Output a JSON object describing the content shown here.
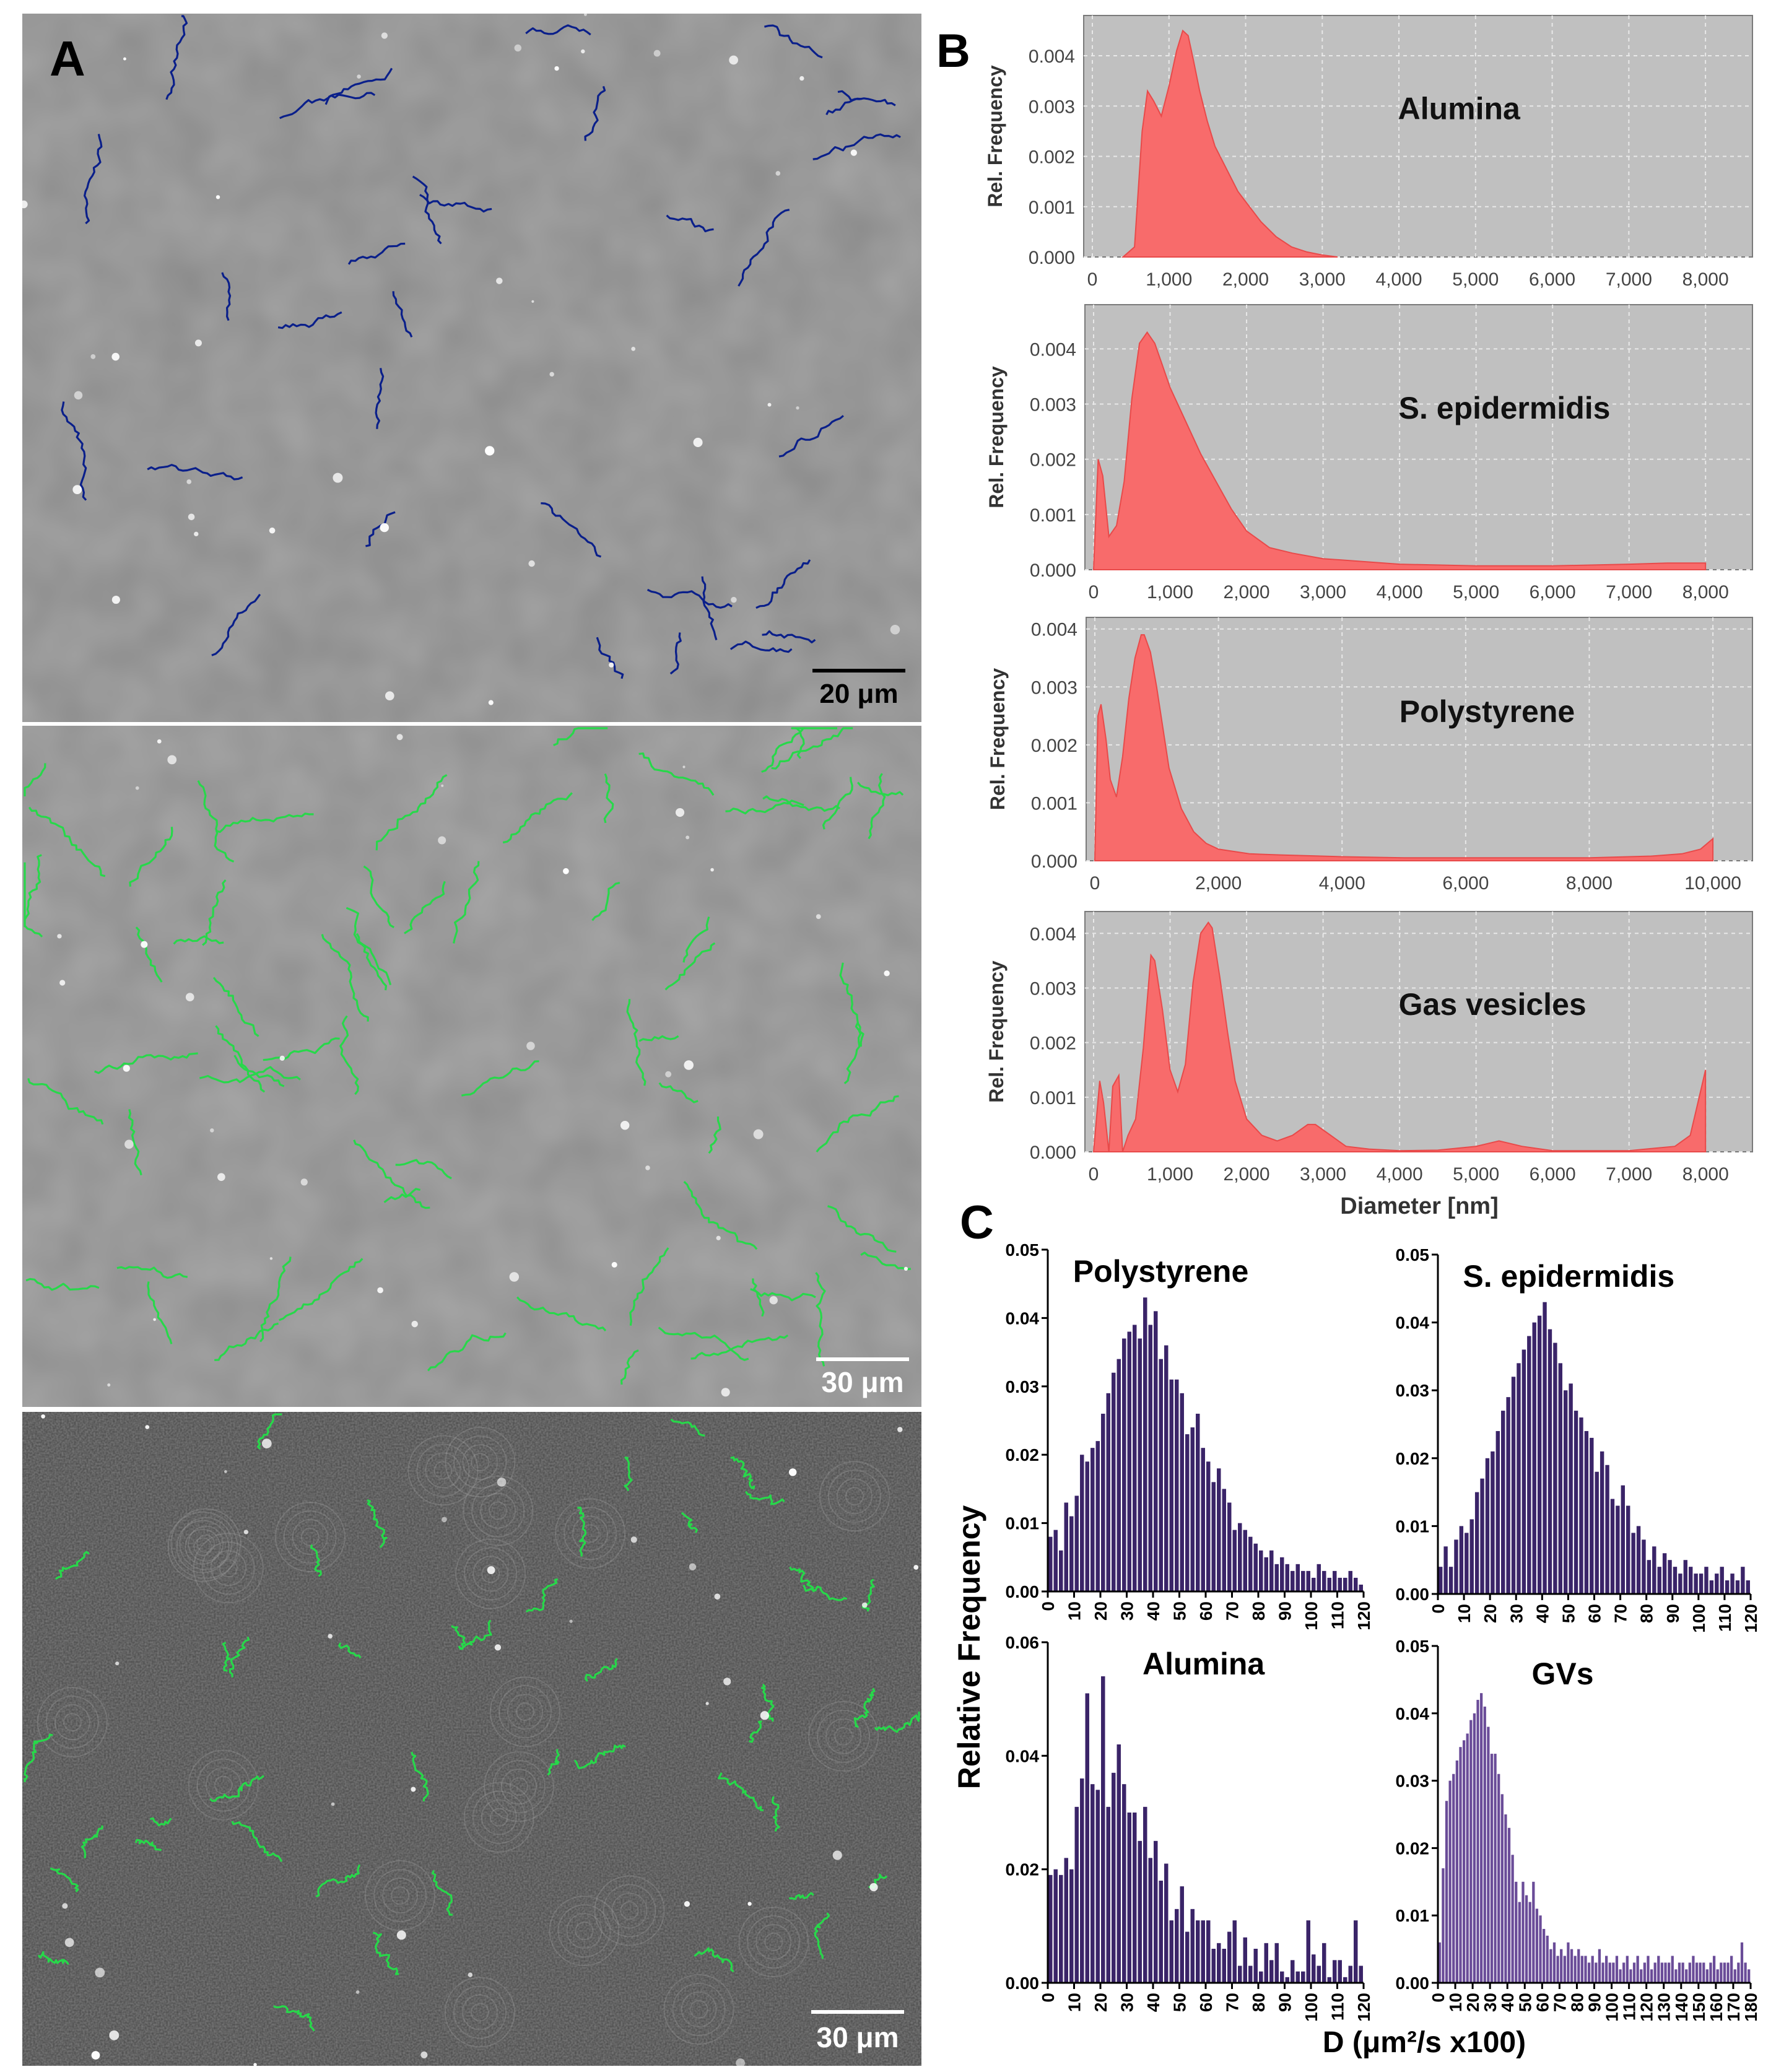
{
  "figure": {
    "panel_labels": {
      "a": "A",
      "b": "B",
      "c": "C"
    },
    "micrographs": [
      {
        "scale_label": "20 μm",
        "bg": "#8b8b8b",
        "track_color": "#0a1f8a"
      },
      {
        "scale_label": "30 μm",
        "bg": "#8e8e8e",
        "track_color": "#27d84a"
      },
      {
        "scale_label": "30 μm",
        "bg": "#4c4c4c",
        "track_color": "#27d84a"
      }
    ],
    "b_ylabel": "Rel. Frequency",
    "b_xlabel": "Diameter [nm]",
    "c_ylabel": "Relative Frequency",
    "c_xlabel": "D (μm²/s x100)"
  },
  "chart_data": [
    {
      "id": "b1",
      "type": "area",
      "title": "Alumina",
      "xlim": [
        0,
        8500
      ],
      "ylim": [
        0,
        0.0048
      ],
      "xticks": [
        0,
        1000,
        2000,
        3000,
        4000,
        5000,
        6000,
        7000,
        8000
      ],
      "xtick_labels": [
        "0",
        "1,000",
        "2,000",
        "3,000",
        "4,000",
        "5,000",
        "6,000",
        "7,000",
        "8,000"
      ],
      "yticks": [
        0,
        0.001,
        0.002,
        0.003,
        0.004
      ],
      "ytick_labels": [
        "0.000",
        "0.001",
        "0.002",
        "0.003",
        "0.004"
      ],
      "x": [
        400,
        550,
        650,
        720,
        800,
        900,
        1000,
        1100,
        1180,
        1250,
        1320,
        1400,
        1500,
        1600,
        1700,
        1800,
        1900,
        2000,
        2200,
        2400,
        2600,
        2800,
        3000,
        3200
      ],
      "y": [
        0,
        0.0002,
        0.0025,
        0.0033,
        0.0031,
        0.0028,
        0.0034,
        0.0041,
        0.0045,
        0.0044,
        0.0039,
        0.0033,
        0.0027,
        0.0022,
        0.0019,
        0.0016,
        0.0013,
        0.0011,
        0.0007,
        0.0004,
        0.0002,
        0.0001,
        4e-05,
        0
      ],
      "color": "#f86b6b"
    },
    {
      "id": "b2",
      "type": "area",
      "title": "S. epidermidis",
      "xlim": [
        0,
        8500
      ],
      "ylim": [
        0,
        0.0048
      ],
      "xticks": [
        0,
        1000,
        2000,
        3000,
        4000,
        5000,
        6000,
        7000,
        8000
      ],
      "xtick_labels": [
        "0",
        "1,000",
        "2,000",
        "3,000",
        "4,000",
        "5,000",
        "6,000",
        "7,000",
        "8,000"
      ],
      "yticks": [
        0,
        0.001,
        0.002,
        0.003,
        0.004
      ],
      "ytick_labels": [
        "0.000",
        "0.001",
        "0.002",
        "0.003",
        "0.004"
      ],
      "x": [
        0,
        60,
        120,
        200,
        300,
        400,
        500,
        600,
        700,
        800,
        900,
        1000,
        1200,
        1400,
        1600,
        1800,
        2000,
        2300,
        2600,
        3000,
        3500,
        4000,
        5000,
        6000,
        7000,
        7500,
        8000
      ],
      "y": [
        0,
        0.002,
        0.0017,
        0.0006,
        0.0008,
        0.0016,
        0.0031,
        0.0041,
        0.0043,
        0.0041,
        0.0037,
        0.0033,
        0.0027,
        0.0021,
        0.0016,
        0.0011,
        0.0007,
        0.0004,
        0.0003,
        0.0002,
        0.00015,
        0.0001,
        7e-05,
        7e-05,
        0.0001,
        0.00012,
        0.00012
      ],
      "color": "#f86b6b"
    },
    {
      "id": "b3",
      "type": "area",
      "title": "Polystyrene",
      "xlim": [
        0,
        10500
      ],
      "ylim": [
        0,
        0.0042
      ],
      "xticks": [
        0,
        2000,
        4000,
        6000,
        8000,
        10000
      ],
      "xtick_labels": [
        "0",
        "2,000",
        "4,000",
        "6,000",
        "8,000",
        "10,000"
      ],
      "yticks": [
        0,
        0.001,
        0.002,
        0.003,
        0.004
      ],
      "ytick_labels": [
        "0.000",
        "0.001",
        "0.002",
        "0.003",
        "0.004"
      ],
      "x": [
        0,
        50,
        100,
        180,
        250,
        350,
        450,
        550,
        650,
        750,
        800,
        900,
        1000,
        1100,
        1200,
        1400,
        1600,
        1800,
        2000,
        2500,
        3000,
        4000,
        5000,
        6000,
        7000,
        8000,
        9000,
        9500,
        9800,
        10000
      ],
      "y": [
        0,
        0.0025,
        0.0027,
        0.0021,
        0.0014,
        0.0011,
        0.0018,
        0.0028,
        0.0035,
        0.0039,
        0.0039,
        0.0036,
        0.003,
        0.0023,
        0.0016,
        0.0009,
        0.0005,
        0.0003,
        0.0002,
        0.00012,
        0.0001,
        7e-05,
        5e-05,
        5e-05,
        5e-05,
        5e-05,
        8e-05,
        0.00012,
        0.0002,
        0.00038
      ],
      "color": "#f86b6b"
    },
    {
      "id": "b4",
      "type": "area",
      "title": "Gas vesicles",
      "xlim": [
        0,
        8500
      ],
      "ylim": [
        0,
        0.0044
      ],
      "xticks": [
        0,
        1000,
        2000,
        3000,
        4000,
        5000,
        6000,
        7000,
        8000
      ],
      "xtick_labels": [
        "0",
        "1,000",
        "2,000",
        "3,000",
        "4,000",
        "5,000",
        "6,000",
        "7,000",
        "8,000"
      ],
      "yticks": [
        0,
        0.001,
        0.002,
        0.003,
        0.004
      ],
      "ytick_labels": [
        "0.000",
        "0.001",
        "0.002",
        "0.003",
        "0.004"
      ],
      "x": [
        0,
        80,
        130,
        200,
        250,
        330,
        380,
        450,
        550,
        650,
        750,
        800,
        900,
        1000,
        1100,
        1200,
        1300,
        1400,
        1500,
        1550,
        1650,
        1750,
        1850,
        2000,
        2200,
        2400,
        2600,
        2800,
        2900,
        3100,
        3300,
        3600,
        4000,
        4500,
        5000,
        5300,
        5600,
        6000,
        7000,
        7600,
        7800,
        7950,
        8000
      ],
      "y": [
        0,
        0.0013,
        0.0009,
        0.0,
        0.0012,
        0.0014,
        0.0,
        0.0003,
        0.0006,
        0.0019,
        0.0036,
        0.0035,
        0.0026,
        0.0015,
        0.0011,
        0.0016,
        0.0031,
        0.004,
        0.0042,
        0.0041,
        0.0032,
        0.0022,
        0.0013,
        0.0006,
        0.0003,
        0.0002,
        0.0003,
        0.0005,
        0.0005,
        0.0003,
        0.0001,
        5e-05,
        2e-05,
        3e-05,
        0.0001,
        0.0002,
        0.0001,
        2e-05,
        2e-05,
        0.0001,
        0.0003,
        0.0012,
        0.0015
      ],
      "color": "#f86b6b"
    },
    {
      "id": "c1",
      "type": "bar",
      "title": "Polystyrene",
      "ylim": [
        0,
        0.05
      ],
      "yticks": [
        0,
        0.01,
        0.02,
        0.03,
        0.04,
        0.05
      ],
      "ytick_labels": [
        "0.00",
        "0.01",
        "0.02",
        "0.03",
        "0.04",
        "0.05"
      ],
      "xticks": [
        0,
        10,
        20,
        30,
        40,
        50,
        60,
        70,
        80,
        90,
        100,
        110,
        120
      ],
      "xlim": [
        0,
        120
      ],
      "bin_width": 2,
      "color": "#3a2468",
      "values": [
        0.008,
        0.009,
        0.006,
        0.013,
        0.011,
        0.014,
        0.02,
        0.019,
        0.021,
        0.022,
        0.026,
        0.029,
        0.032,
        0.034,
        0.037,
        0.038,
        0.039,
        0.037,
        0.043,
        0.039,
        0.041,
        0.034,
        0.036,
        0.031,
        0.031,
        0.029,
        0.023,
        0.024,
        0.026,
        0.021,
        0.019,
        0.016,
        0.018,
        0.015,
        0.013,
        0.009,
        0.01,
        0.009,
        0.008,
        0.007,
        0.006,
        0.005,
        0.006,
        0.004,
        0.005,
        0.004,
        0.003,
        0.004,
        0.003,
        0.003,
        0.002,
        0.004,
        0.003,
        0.002,
        0.003,
        0.002,
        0.002,
        0.003,
        0.002,
        0.001
      ]
    },
    {
      "id": "c2",
      "type": "bar",
      "title": "S. epidermidis",
      "ylim": [
        0,
        0.05
      ],
      "yticks": [
        0,
        0.01,
        0.02,
        0.03,
        0.04,
        0.05
      ],
      "ytick_labels": [
        "0.00",
        "0.01",
        "0.02",
        "0.03",
        "0.04",
        "0.05"
      ],
      "xticks": [
        0,
        10,
        20,
        30,
        40,
        50,
        60,
        70,
        80,
        90,
        100,
        110,
        120
      ],
      "xlim": [
        0,
        120
      ],
      "bin_width": 2,
      "color": "#3a2468",
      "values": [
        0.004,
        0.007,
        0.004,
        0.008,
        0.01,
        0.009,
        0.011,
        0.015,
        0.017,
        0.02,
        0.021,
        0.024,
        0.027,
        0.029,
        0.032,
        0.034,
        0.036,
        0.038,
        0.04,
        0.041,
        0.043,
        0.039,
        0.037,
        0.034,
        0.03,
        0.031,
        0.027,
        0.026,
        0.024,
        0.023,
        0.018,
        0.021,
        0.019,
        0.014,
        0.013,
        0.016,
        0.013,
        0.009,
        0.01,
        0.008,
        0.005,
        0.007,
        0.004,
        0.006,
        0.005,
        0.004,
        0.003,
        0.005,
        0.004,
        0.003,
        0.003,
        0.004,
        0.002,
        0.003,
        0.004,
        0.002,
        0.003,
        0.002,
        0.004,
        0.002
      ]
    },
    {
      "id": "c3",
      "type": "bar",
      "title": "Alumina",
      "ylim": [
        0,
        0.06
      ],
      "yticks": [
        0,
        0.02,
        0.04,
        0.06
      ],
      "ytick_labels": [
        "0.00",
        "0.02",
        "0.04",
        "0.06"
      ],
      "xticks": [
        0,
        10,
        20,
        30,
        40,
        50,
        60,
        70,
        80,
        90,
        100,
        110,
        120
      ],
      "xlim": [
        0,
        120
      ],
      "bin_width": 2,
      "color": "#3a2468",
      "values": [
        0.019,
        0.02,
        0.019,
        0.022,
        0.02,
        0.031,
        0.036,
        0.051,
        0.035,
        0.034,
        0.054,
        0.031,
        0.037,
        0.042,
        0.035,
        0.03,
        0.03,
        0.025,
        0.031,
        0.022,
        0.025,
        0.018,
        0.021,
        0.011,
        0.013,
        0.017,
        0.009,
        0.013,
        0.011,
        0.011,
        0.011,
        0.006,
        0.007,
        0.006,
        0.009,
        0.011,
        0.003,
        0.008,
        0.003,
        0.006,
        0.002,
        0.007,
        0.004,
        0.007,
        0.002,
        0.001,
        0.004,
        0.002,
        0.002,
        0.011,
        0.005,
        0.003,
        0.007,
        0.001,
        0.004,
        0.004,
        0.001,
        0.003,
        0.011,
        0.003
      ]
    },
    {
      "id": "c4",
      "type": "bar",
      "title": "GVs",
      "ylim": [
        0,
        0.05
      ],
      "yticks": [
        0,
        0.01,
        0.02,
        0.03,
        0.04,
        0.05
      ],
      "ytick_labels": [
        "0.00",
        "0.01",
        "0.02",
        "0.03",
        "0.04",
        "0.05"
      ],
      "xticks": [
        0,
        10,
        20,
        30,
        40,
        50,
        60,
        70,
        80,
        90,
        100,
        110,
        120,
        130,
        140,
        150,
        160,
        170,
        180
      ],
      "xlim": [
        0,
        180
      ],
      "bin_width": 2,
      "color": "#6a4c98",
      "values": [
        0.006,
        0.017,
        0.027,
        0.03,
        0.031,
        0.033,
        0.035,
        0.036,
        0.037,
        0.039,
        0.04,
        0.042,
        0.043,
        0.041,
        0.038,
        0.034,
        0.034,
        0.031,
        0.028,
        0.025,
        0.023,
        0.019,
        0.015,
        0.012,
        0.015,
        0.013,
        0.012,
        0.015,
        0.011,
        0.01,
        0.008,
        0.007,
        0.005,
        0.006,
        0.004,
        0.005,
        0.004,
        0.006,
        0.005,
        0.004,
        0.005,
        0.004,
        0.004,
        0.003,
        0.004,
        0.003,
        0.005,
        0.003,
        0.004,
        0.003,
        0.003,
        0.004,
        0.002,
        0.003,
        0.004,
        0.002,
        0.003,
        0.004,
        0.002,
        0.003,
        0.004,
        0.002,
        0.003,
        0.004,
        0.003,
        0.003,
        0.003,
        0.004,
        0.002,
        0.003,
        0.003,
        0.002,
        0.003,
        0.004,
        0.003,
        0.003,
        0.003,
        0.002,
        0.003,
        0.004,
        0.002,
        0.003,
        0.003,
        0.003,
        0.004,
        0.002,
        0.003,
        0.006,
        0.003,
        0.002
      ]
    }
  ]
}
